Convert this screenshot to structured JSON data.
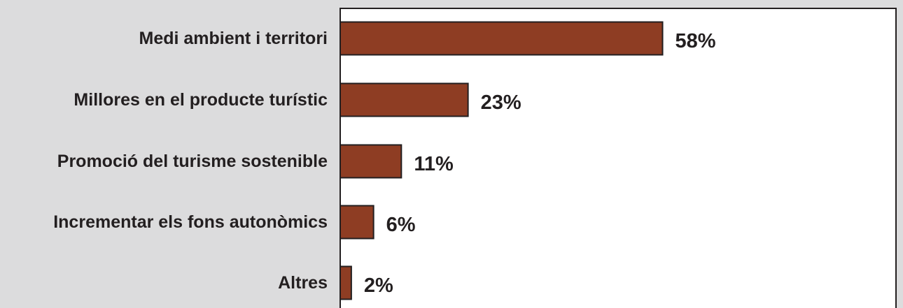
{
  "chart_data": {
    "type": "bar",
    "orientation": "horizontal",
    "categories": [
      "Medi ambient i territori",
      "Millores en el producte turístic",
      "Promoció del turisme sostenible",
      "Incrementar els fons autonòmics",
      "Altres"
    ],
    "values": [
      58,
      23,
      11,
      6,
      2
    ],
    "value_labels": [
      "58%",
      "23%",
      "11%",
      "6%",
      "2%"
    ],
    "unit": "%",
    "xlim": [
      0,
      100
    ],
    "grid": false,
    "legend": "none",
    "colors": {
      "bar": "#8e3d23",
      "bar_stroke": "#231f20",
      "plot_bg": "#ffffff",
      "page_bg": "#dcdcdd",
      "text": "#231f20"
    }
  }
}
